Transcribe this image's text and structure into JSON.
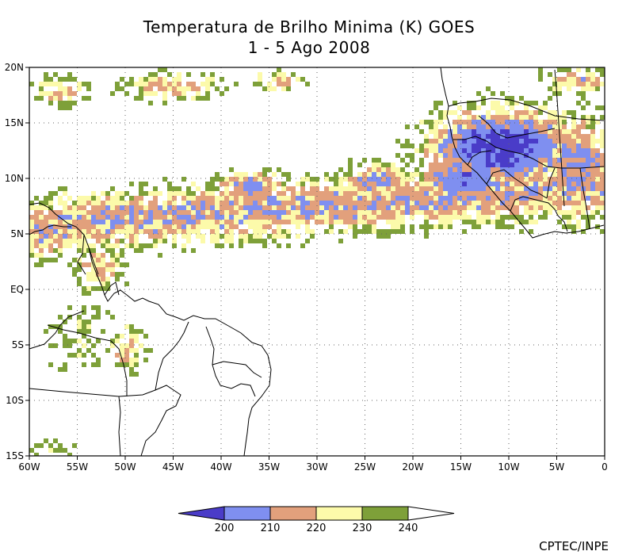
{
  "title": {
    "line1": "Temperatura de Brilho Minima (K) GOES",
    "line2": "1 - 5 Ago 2008"
  },
  "map": {
    "lon_range": [
      -60,
      0
    ],
    "lat_range": [
      -15,
      20
    ],
    "lon_ticks": [
      {
        "v": -60,
        "label": "60W"
      },
      {
        "v": -55,
        "label": "55W"
      },
      {
        "v": -50,
        "label": "50W"
      },
      {
        "v": -45,
        "label": "45W"
      },
      {
        "v": -40,
        "label": "40W"
      },
      {
        "v": -35,
        "label": "35W"
      },
      {
        "v": -30,
        "label": "30W"
      },
      {
        "v": -25,
        "label": "25W"
      },
      {
        "v": -20,
        "label": "20W"
      },
      {
        "v": -15,
        "label": "15W"
      },
      {
        "v": -10,
        "label": "10W"
      },
      {
        "v": -5,
        "label": "5W"
      },
      {
        "v": 0,
        "label": "0"
      }
    ],
    "lat_ticks": [
      {
        "v": 20,
        "label": "20N"
      },
      {
        "v": 15,
        "label": "15N"
      },
      {
        "v": 10,
        "label": "10N"
      },
      {
        "v": 5,
        "label": "5N"
      },
      {
        "v": 0,
        "label": "EQ"
      },
      {
        "v": -5,
        "label": "5S"
      },
      {
        "v": -10,
        "label": "10S"
      },
      {
        "v": -15,
        "label": "15S"
      }
    ]
  },
  "legend": {
    "unit": "K",
    "bins": [
      {
        "label": "< 200",
        "color": "#4a3cc8"
      },
      {
        "label": "200-210",
        "color": "#7f8ff0"
      },
      {
        "label": "210-220",
        "color": "#e2a07c"
      },
      {
        "label": "220-230",
        "color": "#fcfaaa"
      },
      {
        "label": "230-240",
        "color": "#7ea039"
      },
      {
        "label": "> 240",
        "color": "#ffffff"
      }
    ],
    "tick_labels": [
      "200",
      "210",
      "220",
      "230",
      "240"
    ]
  },
  "colors": {
    "deep": "#4a3cc8",
    "blue": "#7f8ff0",
    "salmon": "#e2a07c",
    "yellow": "#fcfaaa",
    "green": "#7ea039"
  },
  "credit": "CPTEC/INPE"
}
